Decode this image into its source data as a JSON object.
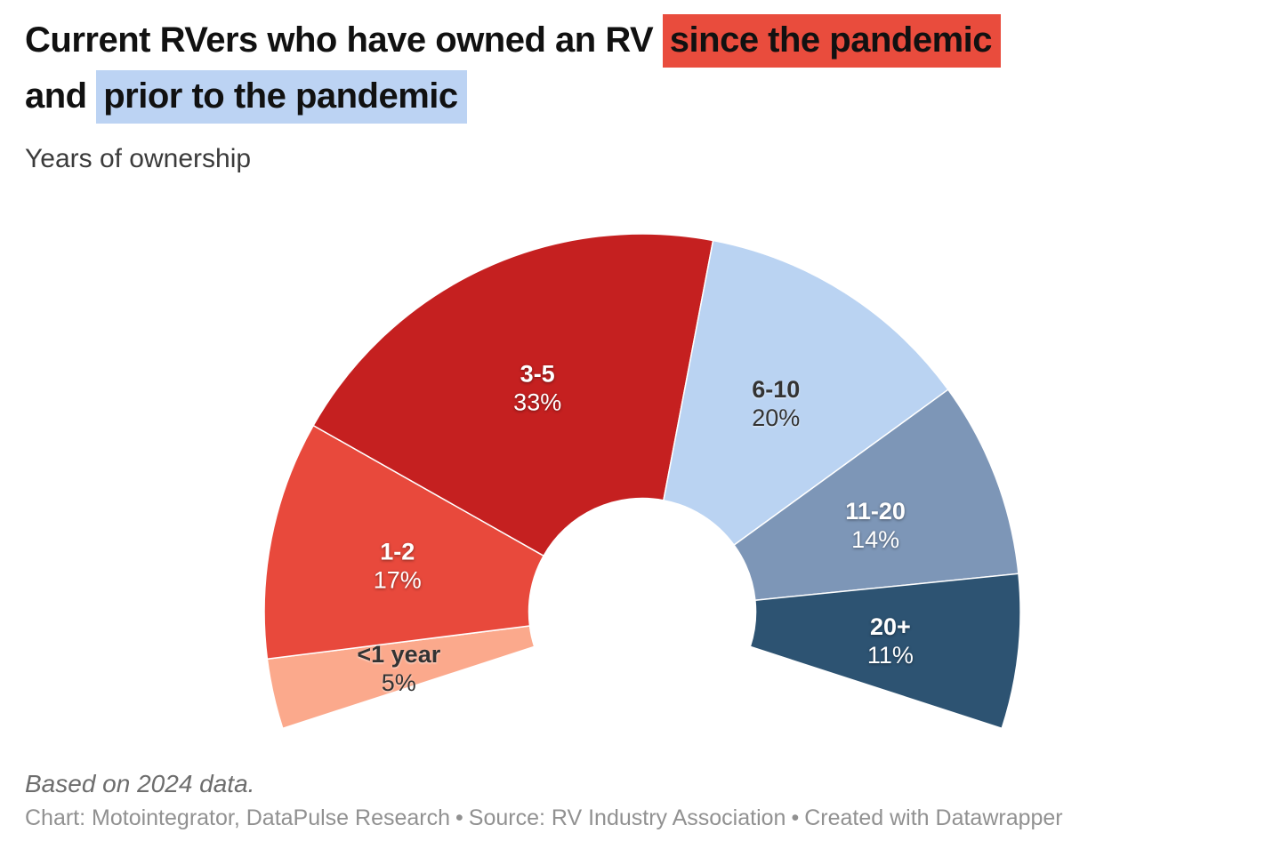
{
  "header": {
    "title_line1_plain": "Current RVers who have owned an RV ",
    "title_line1_highlight": "since the pandemic",
    "title_line2_plain": "and ",
    "title_line2_highlight": "prior to the pandemic",
    "highlight_red": "#e94c3d",
    "highlight_blue": "#bcd3f3",
    "subtitle": "Years of ownership"
  },
  "chart_data": {
    "type": "pie",
    "variant": "half-donut",
    "title": "Current RVers who have owned an RV since the pandemic and prior to the pandemic",
    "subtitle": "Years of ownership",
    "unit": "%",
    "categories": [
      "<1 year",
      "1-2",
      "3-5",
      "6-10",
      "11-20",
      "20+"
    ],
    "values": [
      5,
      17,
      33,
      20,
      14,
      11
    ],
    "colors": [
      "#fba98c",
      "#e8493c",
      "#c52020",
      "#bad3f2",
      "#7d96b7",
      "#2d5372"
    ],
    "label_colors": [
      "#333333",
      "#ffffff",
      "#ffffff",
      "#333333",
      "#ffffff",
      "#ffffff"
    ],
    "group_meaning": {
      "red_segments": "owned since the pandemic",
      "blue_segments": "owned prior to the pandemic"
    },
    "layout": {
      "start_angle_deg": 198,
      "end_angle_deg": -18,
      "span_deg": 216,
      "inner_radius_ratio": 0.3,
      "label_radius_ratio": 0.66,
      "legend": "none",
      "labels": "inside"
    }
  },
  "footer": {
    "note": "Based on 2024 data.",
    "separator": "•",
    "credit_parts": [
      {
        "label": "Chart: Motointegrator, DataPulse Research"
      },
      {
        "label": "Source: RV Industry Association"
      },
      {
        "label": "Created with Datawrapper"
      }
    ]
  }
}
